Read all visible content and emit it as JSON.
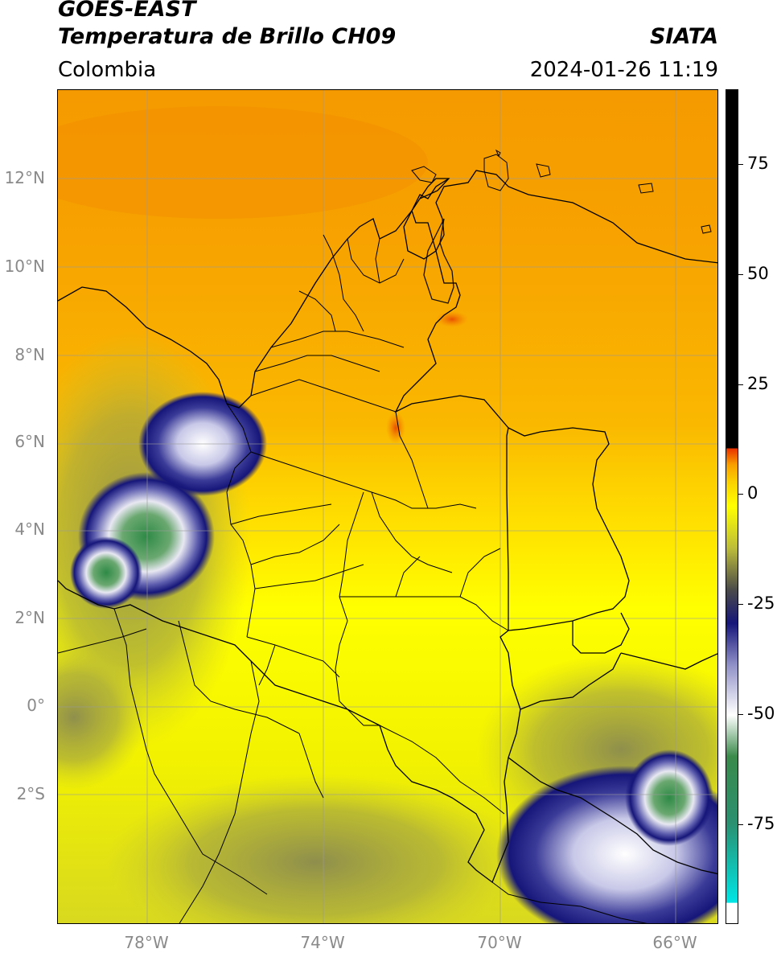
{
  "header": {
    "title_line1": "GOES-EAST",
    "title_line2": "Temperatura de Brillo CH09",
    "credit": "SIATA",
    "region": "Colombia",
    "datetime": "2024-01-26 11:19"
  },
  "map": {
    "lat_labels": [
      "12°N",
      "10°N",
      "8°N",
      "6°N",
      "4°N",
      "2°N",
      "0°",
      "2°S"
    ],
    "lon_labels": [
      "78°W",
      "74°W",
      "70°W",
      "66°W"
    ],
    "colors": {
      "warm_orange": "#f7a000",
      "orange": "#f9b800",
      "yellow": "#ffff00",
      "olive": "#b6b63a",
      "gray_olive": "#7c7c55",
      "navy": "#1a1a80",
      "lavender": "#c8c8e8",
      "green": "#3a8a4a",
      "border": "#000000"
    }
  },
  "colorbar": {
    "tick_labels": [
      "75",
      "50",
      "25",
      "0",
      "-25",
      "-50",
      "-75"
    ],
    "colors": [
      "#ffffff",
      "#00e5e5",
      "#2a9070",
      "#3a8a4a",
      "#ffffff",
      "#9090c8",
      "#16167a",
      "#4a4a4a",
      "#bcbc3a",
      "#ffff00",
      "#f9a000",
      "#e83000",
      "#000000"
    ]
  }
}
